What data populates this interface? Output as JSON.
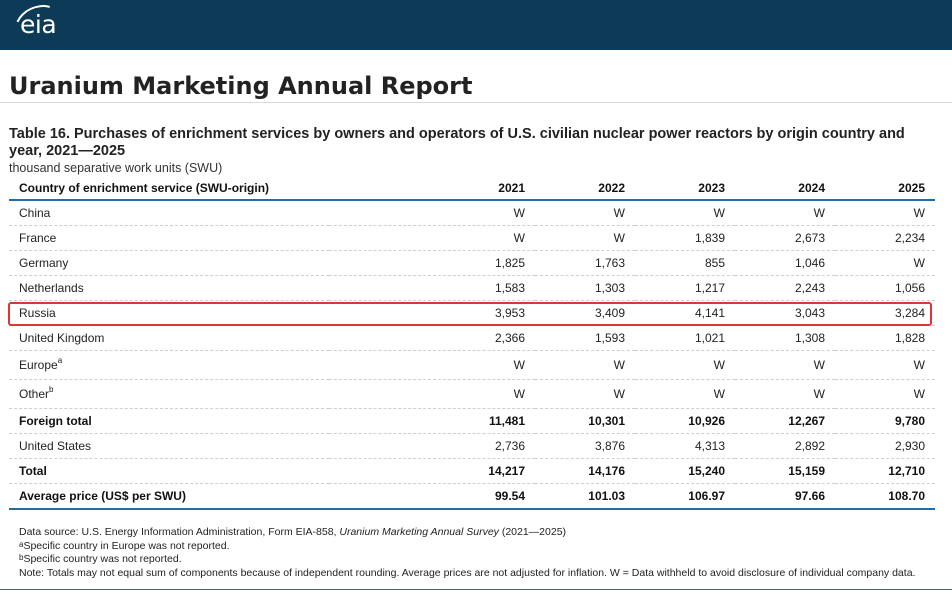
{
  "header": {
    "logo_text": "eia",
    "brand_color": "#0d3a57"
  },
  "report_title": "Uranium Marketing Annual Report",
  "table": {
    "title": "Table 16. Purchases of enrichment services by owners and operators of U.S. civilian nuclear power reactors by origin country and year, 2021—2025",
    "units": "thousand separative work units (SWU)",
    "columns": [
      "Country of enrichment service (SWU-origin)",
      "2021",
      "2022",
      "2023",
      "2024",
      "2025"
    ],
    "rows": [
      {
        "label": "China",
        "sup": "",
        "values": [
          "W",
          "W",
          "W",
          "W",
          "W"
        ],
        "bold": false
      },
      {
        "label": "France",
        "sup": "",
        "values": [
          "W",
          "W",
          "1,839",
          "2,673",
          "2,234"
        ],
        "bold": false
      },
      {
        "label": "Germany",
        "sup": "",
        "values": [
          "1,825",
          "1,763",
          "855",
          "1,046",
          "W"
        ],
        "bold": false
      },
      {
        "label": "Netherlands",
        "sup": "",
        "values": [
          "1,583",
          "1,303",
          "1,217",
          "2,243",
          "1,056"
        ],
        "bold": false
      },
      {
        "label": "Russia",
        "sup": "",
        "values": [
          "3,953",
          "3,409",
          "4,141",
          "3,043",
          "3,284"
        ],
        "bold": false
      },
      {
        "label": "United Kingdom",
        "sup": "",
        "values": [
          "2,366",
          "1,593",
          "1,021",
          "1,308",
          "1,828"
        ],
        "bold": false
      },
      {
        "label": "Europe",
        "sup": "a",
        "values": [
          "W",
          "W",
          "W",
          "W",
          "W"
        ],
        "bold": false
      },
      {
        "label": "Other",
        "sup": "b",
        "values": [
          "W",
          "W",
          "W",
          "W",
          "W"
        ],
        "bold": false
      },
      {
        "label": "Foreign total",
        "sup": "",
        "values": [
          "11,481",
          "10,301",
          "10,926",
          "12,267",
          "9,780"
        ],
        "bold": true
      },
      {
        "label": "United States",
        "sup": "",
        "values": [
          "2,736",
          "3,876",
          "4,313",
          "2,892",
          "2,930"
        ],
        "bold": false
      },
      {
        "label": "Total",
        "sup": "",
        "values": [
          "14,217",
          "14,176",
          "15,240",
          "15,159",
          "12,710"
        ],
        "bold": true
      },
      {
        "label": "Average price (US$ per SWU)",
        "sup": "",
        "values": [
          "99.54",
          "101.03",
          "106.97",
          "97.66",
          "108.70"
        ],
        "bold": true
      }
    ],
    "highlighted_row": "Russia",
    "highlight_color": "#e0343a",
    "accent_color": "#1e6fa8"
  },
  "notes": {
    "source_prefix": "Data source: U.S. Energy Information Administration, Form EIA-858, ",
    "source_italic": "Uranium Marketing Annual Survey",
    "source_suffix": " (2021—2025)",
    "note_a_marker": "a",
    "note_a": "Specific country in Europe was not reported.",
    "note_b_marker": "b",
    "note_b": "Specific country was not reported.",
    "note_general": "Note: Totals may not equal sum of components because of independent rounding. Average prices are not adjusted for inflation. W = Data withheld to avoid disclosure of individual company data."
  }
}
